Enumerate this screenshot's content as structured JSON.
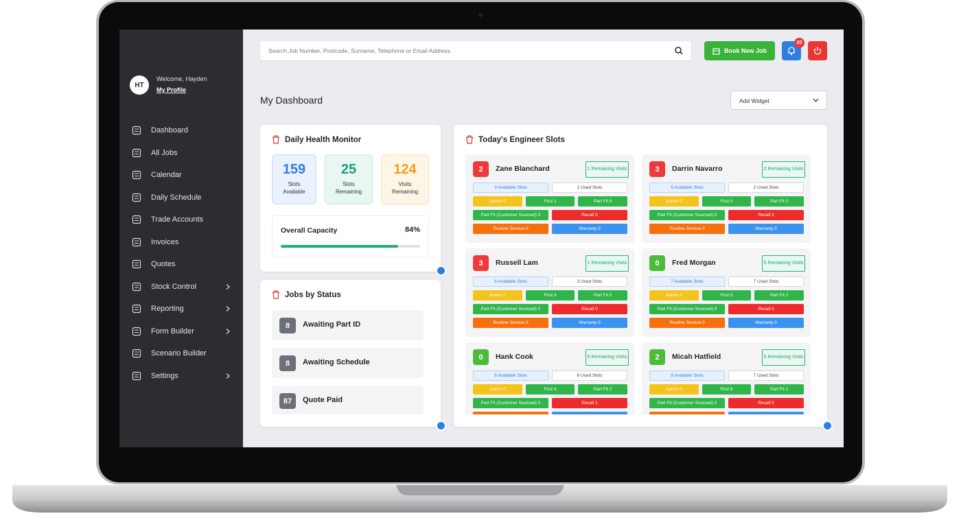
{
  "user": {
    "initials": "HT",
    "welcome": "Welcome, Hayden",
    "profile_link": "My Profile"
  },
  "nav": [
    {
      "label": "Dashboard"
    },
    {
      "label": "All Jobs"
    },
    {
      "label": "Calendar"
    },
    {
      "label": "Daily Schedule"
    },
    {
      "label": "Trade Accounts"
    },
    {
      "label": "Invoices"
    },
    {
      "label": "Quotes"
    },
    {
      "label": "Stock Control",
      "has_submenu": true
    },
    {
      "label": "Reporting",
      "has_submenu": true
    },
    {
      "label": "Form Builder",
      "has_submenu": true
    },
    {
      "label": "Scenario Builder"
    },
    {
      "label": "Settings",
      "has_submenu": true
    }
  ],
  "header": {
    "search_placeholder": "Search Job Number, Postcode, Surname, Telephone or Email Address",
    "book_button": "Book New Job",
    "notification_count": 20
  },
  "page_title": "My Dashboard",
  "widget_select": "Add Widget",
  "health_monitor": {
    "title": "Daily Health Monitor",
    "stats": [
      {
        "value": 159,
        "label": "Slots Available"
      },
      {
        "value": 25,
        "label": "Slots Remaining"
      },
      {
        "value": 124,
        "label": "Visits Remaining"
      }
    ],
    "capacity_label": "Overall Capacity",
    "capacity": {
      "value": 84,
      "label": "84%"
    }
  },
  "jobs_by_status": {
    "title": "Jobs by Status",
    "items": [
      {
        "count": 8,
        "label": "Awaiting Part ID"
      },
      {
        "count": 8,
        "label": "Awaiting Schedule"
      },
      {
        "count": 87,
        "label": "Quote Paid"
      }
    ]
  },
  "engineer_slots": {
    "title": "Today's Engineer Slots",
    "engineers": [
      {
        "count": 2,
        "badge_color": "#ee3a3a",
        "name": "Zane Blanchard",
        "remaining": "1 Remaining Visits",
        "available": "3 Available Slots",
        "used": "1 Used Slots",
        "tags": [
          "Admin 0",
          "First 1",
          "Part Fit 0",
          "Part Fit (Customer Sourced) 0",
          "Recall 0",
          "Routine Service 0",
          "Warranty 0"
        ]
      },
      {
        "count": 3,
        "badge_color": "#ee3a3a",
        "name": "Darrin Navarro",
        "remaining": "2 Remaining Visits",
        "available": "5 Available Slots",
        "used": "2 Used Slots",
        "tags": [
          "Admin 0",
          "First 0",
          "Part Fit 2",
          "Part Fit (Customer Sourced) 0",
          "Recall 0",
          "Routine Service 0",
          "Warranty 0"
        ]
      },
      {
        "count": 3,
        "badge_color": "#ee3a3a",
        "name": "Russell Lam",
        "remaining": "1 Remaining Visits",
        "available": "6 Available Slots",
        "used": "3 Used Slots",
        "tags": [
          "Admin 0",
          "First 3",
          "Part Fit 0",
          "Part Fit (Customer Sourced) 0",
          "Recall 0",
          "Routine Service 0",
          "Warranty 0"
        ]
      },
      {
        "count": 0,
        "badge_color": "#4cbb3a",
        "name": "Fred Morgan",
        "remaining": "6 Remaining Visits",
        "available": "7 Available Slots",
        "used": "7 Used Slots",
        "tags": [
          "Admin 0",
          "First 5",
          "Part Fit 2",
          "Part Fit (Customer Sourced) 0",
          "Recall 0",
          "Routine Service 0",
          "Warranty 0"
        ]
      },
      {
        "count": 0,
        "badge_color": "#4cbb3a",
        "name": "Hank Cook",
        "remaining": "6 Remaining Visits",
        "available": "6 Available Slots",
        "used": "6 Used Slots",
        "tags": [
          "Admin 0",
          "First 4",
          "Part Fit 2",
          "Part Fit (Customer Sourced) 0",
          "Recall 1"
        ]
      },
      {
        "count": 2,
        "badge_color": "#4cbb3a",
        "name": "Micah Hatfield",
        "remaining": "5 Remaining Visits",
        "available": "9 Available Slots",
        "used": "7 Used Slots",
        "tags": [
          "Admin 0",
          "First 6",
          "Part Fit 1",
          "Part Fit (Customer Sourced) 0",
          "Recall 0"
        ]
      }
    ]
  }
}
